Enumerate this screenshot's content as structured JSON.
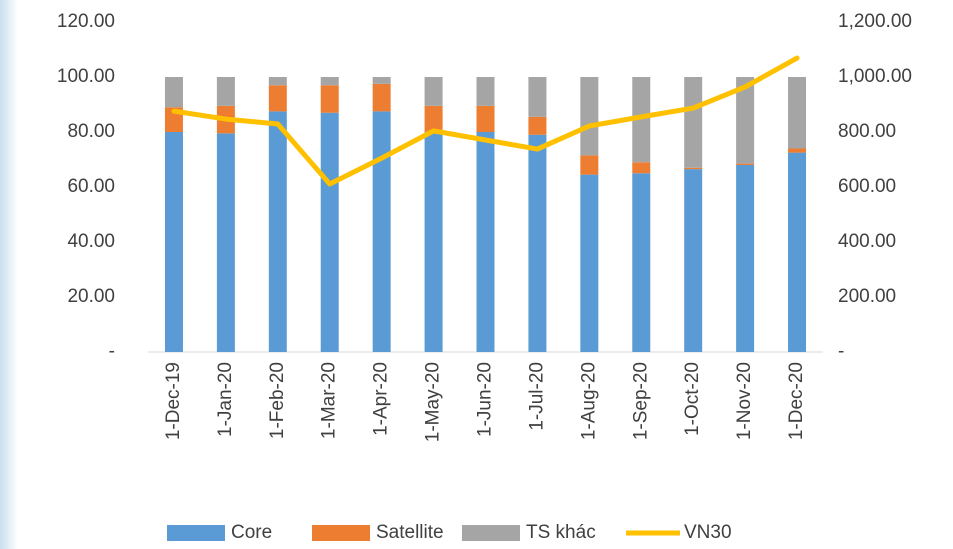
{
  "chart_data": {
    "type": "bar",
    "stacked": true,
    "categories": [
      "1-Dec-19",
      "1-Jan-20",
      "1-Feb-20",
      "1-Mar-20",
      "1-Apr-20",
      "1-May-20",
      "1-Jun-20",
      "1-Jul-20",
      "1-Aug-20",
      "1-Sep-20",
      "1-Oct-20",
      "1-Nov-20",
      "1-Dec-20"
    ],
    "series": [
      {
        "name": "Core",
        "type": "bar",
        "color": "#5b9bd5",
        "values": [
          80,
          79.5,
          87.5,
          87,
          87.5,
          80,
          80,
          79,
          64.5,
          65,
          66.5,
          68,
          72.5
        ]
      },
      {
        "name": "Satellite",
        "type": "bar",
        "color": "#ed7d31",
        "values": [
          9,
          10,
          9.5,
          10,
          10,
          9.5,
          9.5,
          6.5,
          7,
          4,
          0.5,
          0.5,
          1.5
        ]
      },
      {
        "name": "TS khác",
        "type": "bar",
        "color": "#a5a5a5",
        "values": [
          11,
          10.5,
          3,
          3,
          2.5,
          10.5,
          10.5,
          14.5,
          28.5,
          31,
          33,
          31.5,
          26
        ]
      },
      {
        "name": "VN30",
        "type": "line",
        "axis": "y2",
        "color": "#ffc000",
        "values": [
          876,
          847,
          829,
          611,
          705,
          804,
          771,
          738,
          822,
          855,
          887,
          964,
          1069
        ]
      }
    ],
    "ylim": [
      0,
      120
    ],
    "yticks": [
      {
        "value": 0,
        "label": "-"
      },
      {
        "value": 20,
        "label": "20.00"
      },
      {
        "value": 40,
        "label": "40.00"
      },
      {
        "value": 60,
        "label": "60.00"
      },
      {
        "value": 80,
        "label": "80.00"
      },
      {
        "value": 100,
        "label": "100.00"
      },
      {
        "value": 120,
        "label": "120.00"
      }
    ],
    "y2lim": [
      0,
      1200
    ],
    "y2ticks": [
      {
        "value": 0,
        "label": "-"
      },
      {
        "value": 200,
        "label": "200.00"
      },
      {
        "value": 400,
        "label": "400.00"
      },
      {
        "value": 600,
        "label": "600.00"
      },
      {
        "value": 800,
        "label": "800.00"
      },
      {
        "value": 1000,
        "label": "1,000.00"
      },
      {
        "value": 1200,
        "label": "1,200.00"
      }
    ],
    "grid": false,
    "legend": "bottom"
  }
}
